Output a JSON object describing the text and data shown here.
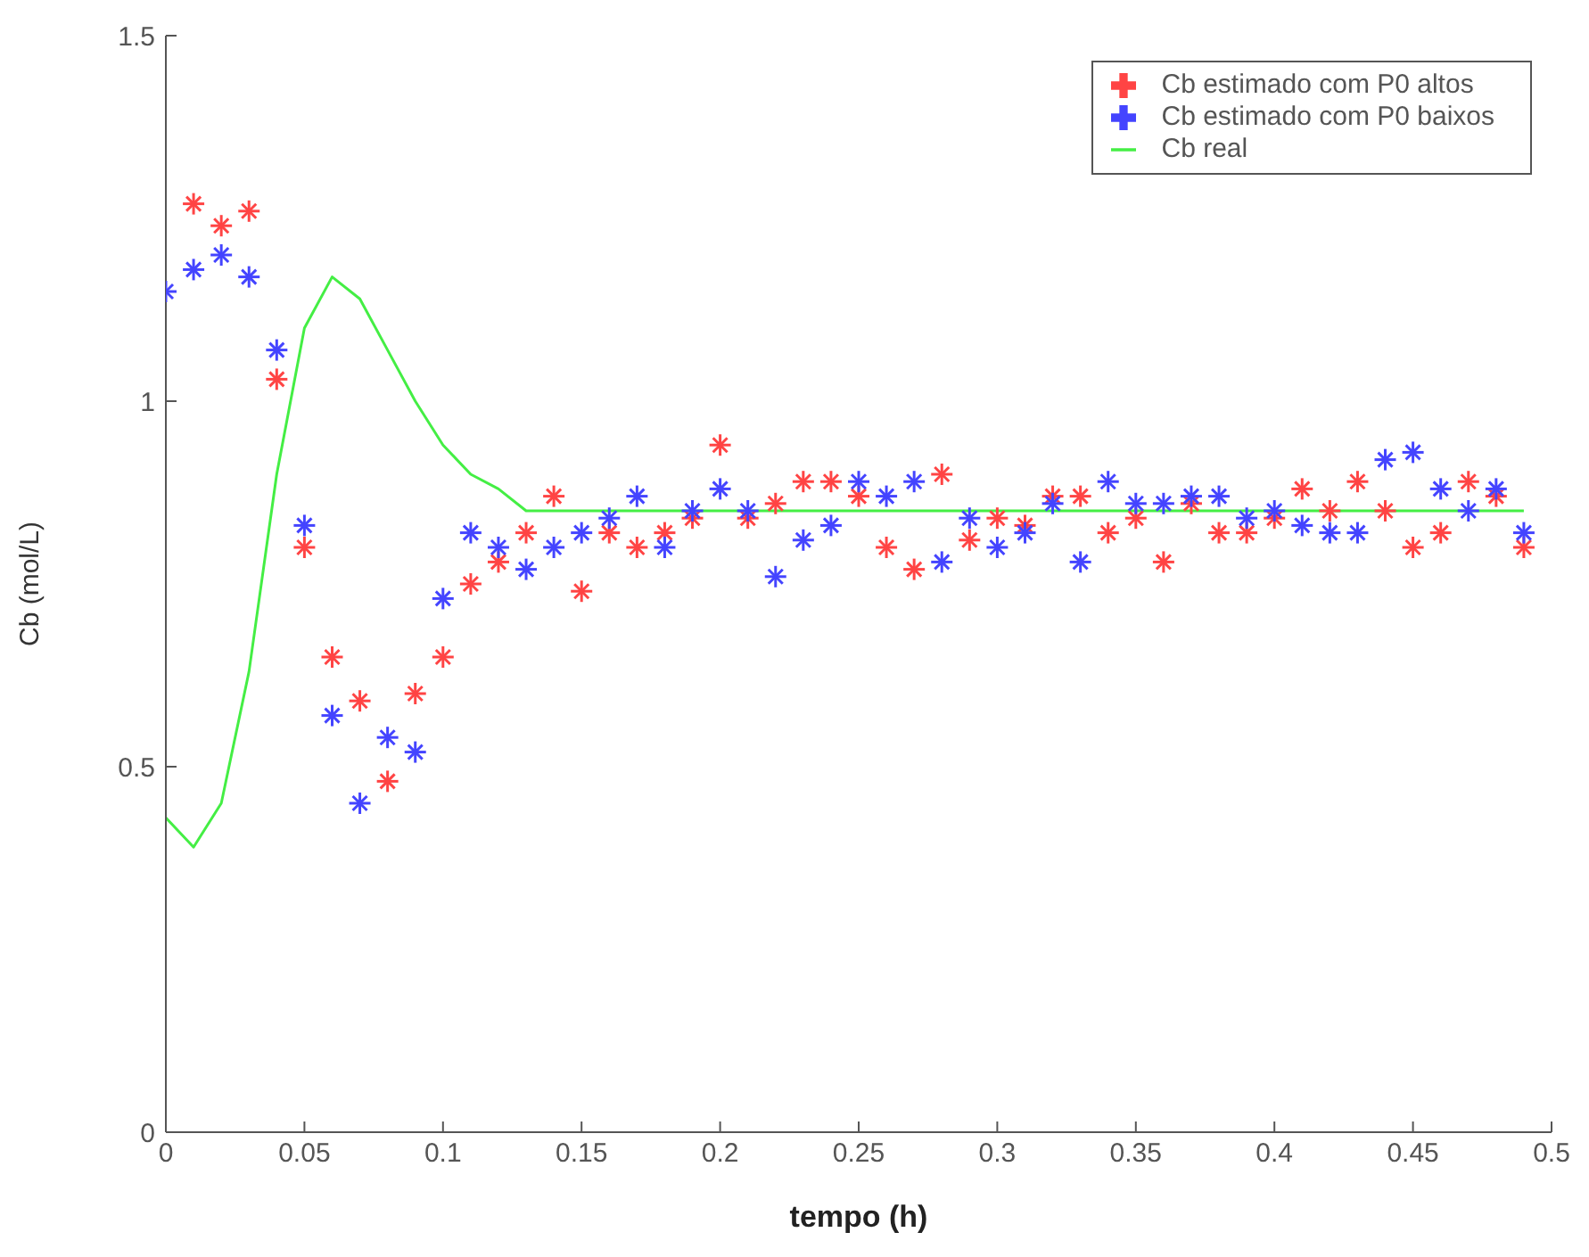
{
  "chart_data": {
    "type": "scatter",
    "xlabel": "tempo (h)",
    "ylabel": "Cb (mol/L)",
    "xlim": [
      0,
      0.5
    ],
    "xticks": [
      0,
      0.05,
      0.1,
      0.15,
      0.2,
      0.25,
      0.3,
      0.35,
      0.4,
      0.45,
      0.5
    ],
    "ylim": [
      0,
      1.5
    ],
    "yticks": [
      0,
      0.5,
      1,
      1.5
    ],
    "grid": false,
    "legend": "top right",
    "marker": "cross",
    "series": [
      {
        "name": "Cb estimado com P0 altos",
        "color": "#ff4444",
        "x": [
          0.01,
          0.02,
          0.03,
          0.04,
          0.05,
          0.06,
          0.07,
          0.08,
          0.09,
          0.1,
          0.11,
          0.12,
          0.13,
          0.14,
          0.15,
          0.16,
          0.17,
          0.18,
          0.19,
          0.2,
          0.21,
          0.22,
          0.23,
          0.24,
          0.25,
          0.26,
          0.27,
          0.28,
          0.29,
          0.3,
          0.31,
          0.32,
          0.33,
          0.34,
          0.35,
          0.36,
          0.37,
          0.38,
          0.39,
          0.4,
          0.41,
          0.42,
          0.43,
          0.44,
          0.45,
          0.46,
          0.47,
          0.48,
          0.49
        ],
        "values": [
          1.27,
          1.24,
          1.26,
          1.03,
          0.8,
          0.65,
          0.59,
          0.48,
          0.6,
          0.65,
          0.75,
          0.78,
          0.82,
          0.87,
          0.74,
          0.82,
          0.8,
          0.82,
          0.84,
          0.94,
          0.84,
          0.86,
          0.89,
          0.89,
          0.87,
          0.8,
          0.77,
          0.9,
          0.81,
          0.84,
          0.83,
          0.87,
          0.87,
          0.82,
          0.84,
          0.78,
          0.86,
          0.82,
          0.82,
          0.84,
          0.88,
          0.85,
          0.89,
          0.85,
          0.8,
          0.82,
          0.89,
          0.87,
          0.8
        ]
      },
      {
        "name": "Cb real",
        "type": "line",
        "color": "#44ee44",
        "marker": "none",
        "x": [
          0,
          0.01,
          0.02,
          0.03,
          0.04,
          0.05,
          0.06,
          0.07,
          0.08,
          0.09,
          0.1,
          0.11,
          0.12,
          0.13,
          0.2,
          0.3,
          0.4,
          0.49
        ],
        "values": [
          0.43,
          0.39,
          0.45,
          0.63,
          0.9,
          1.1,
          1.17,
          1.14,
          1.07,
          1.0,
          0.94,
          0.9,
          0.88,
          0.85,
          0.85,
          0.85,
          0.85,
          0.85
        ]
      },
      {
        "name": "Cb estimado com P0 baixos",
        "color": "#4444ff",
        "x": [
          0,
          0.01,
          0.02,
          0.03,
          0.04,
          0.05,
          0.06,
          0.07,
          0.08,
          0.09,
          0.1,
          0.11,
          0.12,
          0.13,
          0.14,
          0.15,
          0.16,
          0.17,
          0.18,
          0.19,
          0.2,
          0.21,
          0.22,
          0.23,
          0.24,
          0.25,
          0.26,
          0.27,
          0.28,
          0.29,
          0.3,
          0.31,
          0.32,
          0.33,
          0.34,
          0.35,
          0.36,
          0.37,
          0.38,
          0.39,
          0.4,
          0.41,
          0.42,
          0.43,
          0.44,
          0.45,
          0.46,
          0.47,
          0.48,
          0.49
        ],
        "values": [
          1.15,
          1.18,
          1.2,
          1.17,
          1.07,
          0.83,
          0.57,
          0.45,
          0.54,
          0.52,
          0.73,
          0.82,
          0.8,
          0.77,
          0.8,
          0.82,
          0.84,
          0.87,
          0.8,
          0.85,
          0.88,
          0.85,
          0.76,
          0.81,
          0.83,
          0.89,
          0.87,
          0.89,
          0.78,
          0.84,
          0.8,
          0.82,
          0.86,
          0.78,
          0.89,
          0.86,
          0.86,
          0.87,
          0.87,
          0.84,
          0.85,
          0.83,
          0.82,
          0.82,
          0.92,
          0.93,
          0.88,
          0.85,
          0.88,
          0.82
        ]
      }
    ]
  }
}
